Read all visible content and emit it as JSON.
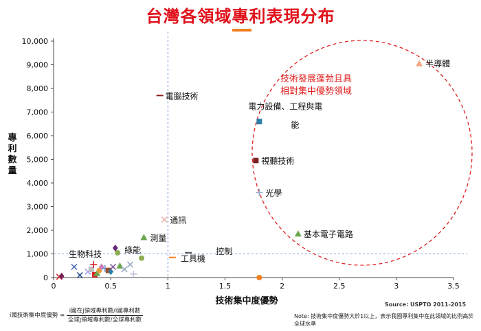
{
  "title": "台灣各領域專利表現分布",
  "chart_data": {
    "type": "scatter",
    "xlabel": "技術集中度優勢",
    "ylabel": "專利數量",
    "xlim": [
      0,
      3.5
    ],
    "ylim": [
      0,
      10000
    ],
    "x_ticks": [
      "0",
      "0.5",
      "1",
      "1.5",
      "2",
      "2.5",
      "3",
      "3.5"
    ],
    "y_ticks": [
      "0",
      "1,000",
      "2,000",
      "3,000",
      "4,000",
      "5,000",
      "6,000",
      "7,000",
      "8,000",
      "9,000",
      "10,000"
    ],
    "reference_lines": {
      "x": 1,
      "y": 1000
    },
    "annotation": "技術發展蓬勃且具相對集中優勢領域",
    "labeled_points": [
      {
        "label": "半導體",
        "x": 3.2,
        "y": 9050,
        "marker": "triangle",
        "color": "#f4a582"
      },
      {
        "label": "電腦技術",
        "x": 0.93,
        "y": 7700,
        "marker": "dash",
        "color": "#8b1a1a"
      },
      {
        "label": "電力設備、工程與電能",
        "x": 1.8,
        "y": 6600,
        "marker": "square",
        "color": "#2e7fa8"
      },
      {
        "label": "視聽技術",
        "x": 1.77,
        "y": 4950,
        "marker": "square",
        "color": "#7b1f1f"
      },
      {
        "label": "光學",
        "x": 1.8,
        "y": 3600,
        "marker": "plus",
        "color": "#9aa7c7"
      },
      {
        "label": "通訊",
        "x": 0.97,
        "y": 2450,
        "marker": "x",
        "color": "#e8b4a8"
      },
      {
        "label": "基本電子電路",
        "x": 2.14,
        "y": 1850,
        "marker": "triangle",
        "color": "#6aa84f"
      },
      {
        "label": "測量",
        "x": 0.79,
        "y": 1700,
        "marker": "triangle",
        "color": "#6aa84f"
      },
      {
        "label": "控制",
        "x": 1.18,
        "y": 1050,
        "marker": "dash",
        "color": "#555555"
      },
      {
        "label": "工具機",
        "x": 1.04,
        "y": 850,
        "marker": "dash",
        "color": "#f08020"
      },
      {
        "label": "綠能",
        "x": 0.56,
        "y": 1050,
        "marker": "circle",
        "color": "#8fae52"
      },
      {
        "label": "生物科技",
        "x": 0.47,
        "y": 950,
        "marker": "none",
        "color": "#333333"
      }
    ],
    "other_points": [
      {
        "x": 1.8,
        "y": 0,
        "marker": "circle",
        "color": "#f08020"
      },
      {
        "x": 0.05,
        "y": 30,
        "marker": "x",
        "color": "#d62728"
      },
      {
        "x": 0.07,
        "y": 60,
        "marker": "diamond",
        "color": "#7b1f4f"
      },
      {
        "x": 0.18,
        "y": 450,
        "marker": "x",
        "color": "#4f6fb0"
      },
      {
        "x": 0.23,
        "y": 100,
        "marker": "x",
        "color": "#2f4f8f"
      },
      {
        "x": 0.3,
        "y": 250,
        "marker": "x",
        "color": "#a0a0ff"
      },
      {
        "x": 0.33,
        "y": 350,
        "marker": "square",
        "color": "#c0c0c0"
      },
      {
        "x": 0.35,
        "y": 550,
        "marker": "plus",
        "color": "#d62728"
      },
      {
        "x": 0.36,
        "y": 120,
        "marker": "square",
        "color": "#d62728"
      },
      {
        "x": 0.38,
        "y": 180,
        "marker": "triangle",
        "color": "#6aa84f"
      },
      {
        "x": 0.4,
        "y": 300,
        "marker": "circle",
        "color": "#e89a3c"
      },
      {
        "x": 0.42,
        "y": 450,
        "marker": "diamond",
        "color": "#d080c0"
      },
      {
        "x": 0.45,
        "y": 380,
        "marker": "plus",
        "color": "#6a8fd0"
      },
      {
        "x": 0.48,
        "y": 300,
        "marker": "square",
        "color": "#a05030"
      },
      {
        "x": 0.5,
        "y": 250,
        "marker": "diamond",
        "color": "#2e7fa8"
      },
      {
        "x": 0.52,
        "y": 450,
        "marker": "x",
        "color": "#8060a0"
      },
      {
        "x": 0.54,
        "y": 1250,
        "marker": "diamond",
        "color": "#6a2a7a"
      },
      {
        "x": 0.58,
        "y": 500,
        "marker": "triangle",
        "color": "#6aa84f"
      },
      {
        "x": 0.62,
        "y": 350,
        "marker": "x",
        "color": "#9aa7c7"
      },
      {
        "x": 0.67,
        "y": 550,
        "marker": "x",
        "color": "#9aa7c7"
      },
      {
        "x": 0.7,
        "y": 150,
        "marker": "plus",
        "color": "#c0c0e0"
      },
      {
        "x": 0.77,
        "y": 820,
        "marker": "circle",
        "color": "#8fae52"
      }
    ]
  },
  "formula": {
    "lhs": "i國技術集中度優勢 =",
    "numerator": "i國在j領域專利數/i國專利數",
    "denominator": "全球j領域專利數/全球專利數"
  },
  "source": "Source: USPTO 2011-2015",
  "note": "Note: 技術集中度優勢大於1以上，表示我國專利集中在此領域的比例高於全球水準"
}
